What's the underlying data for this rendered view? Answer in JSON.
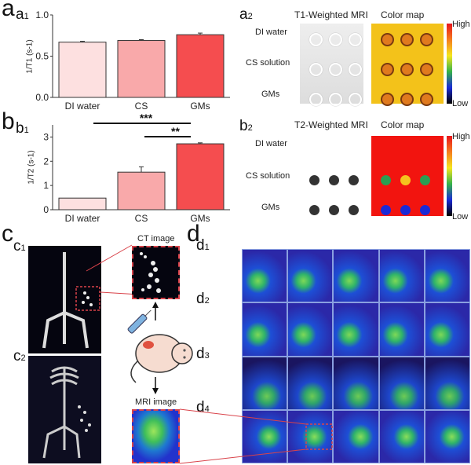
{
  "panels": {
    "a": "a",
    "a1": "a",
    "a1_sub": "1",
    "a2": "a",
    "a2_sub": "2",
    "b": "b",
    "b1": "b",
    "b1_sub": "1",
    "b2": "b",
    "b2_sub": "2",
    "c": "c",
    "c1": "c",
    "c1_sub": "1",
    "c2": "c",
    "c2_sub": "2",
    "d": "d",
    "d1": "d",
    "d1_sub": "1",
    "d2": "d",
    "d2_sub": "2",
    "d3": "d",
    "d3_sub": "3",
    "d4": "d",
    "d4_sub": "4"
  },
  "mri_panels": {
    "a2": {
      "title": "T1-Weighted MRI",
      "colormap_title": "Color map",
      "rows": [
        "DI water",
        "CS solution",
        "GMs"
      ],
      "high": "High",
      "low": "Low"
    },
    "b2": {
      "title": "T2-Weighted MRI",
      "colormap_title": "Color map",
      "rows": [
        "DI water",
        "CS solution",
        "GMs"
      ],
      "high": "High",
      "low": "Low"
    }
  },
  "panel_c": {
    "ct_label": "CT image",
    "mri_label": "MRI image"
  },
  "colors": {
    "bar1": "#fde0e0",
    "bar2": "#f9a9aa",
    "bar3": "#f54d4f",
    "zoom_box": "#d9434a"
  },
  "chart_data": [
    {
      "type": "bar",
      "title": "a1",
      "categories": [
        "DI water",
        "CS",
        "GMs"
      ],
      "values": [
        0.67,
        0.69,
        0.76
      ],
      "errors": [
        0.01,
        0.01,
        0.02
      ],
      "ylabel": "1/T1 (s-1)",
      "ylim": [
        0,
        1.0
      ],
      "yticks": [
        "0.0",
        "0.5",
        "1.0"
      ],
      "ytick_values": [
        0,
        0.5,
        1.0
      ]
    },
    {
      "type": "bar",
      "title": "b1",
      "categories": [
        "DI water",
        "CS",
        "GMs"
      ],
      "values": [
        0.48,
        1.55,
        2.72
      ],
      "errors": [
        0,
        0.22,
        0.04
      ],
      "ylabel": "1/T2 (s-1)",
      "ylim": [
        0,
        3.5
      ],
      "yticks": [
        "0",
        "1",
        "2",
        "3"
      ],
      "ytick_values": [
        0,
        1,
        2,
        3
      ],
      "annotations": [
        {
          "text": "***",
          "from": "DI water",
          "to": "GMs"
        },
        {
          "text": "**",
          "from": "CS",
          "to": "GMs"
        }
      ]
    }
  ]
}
